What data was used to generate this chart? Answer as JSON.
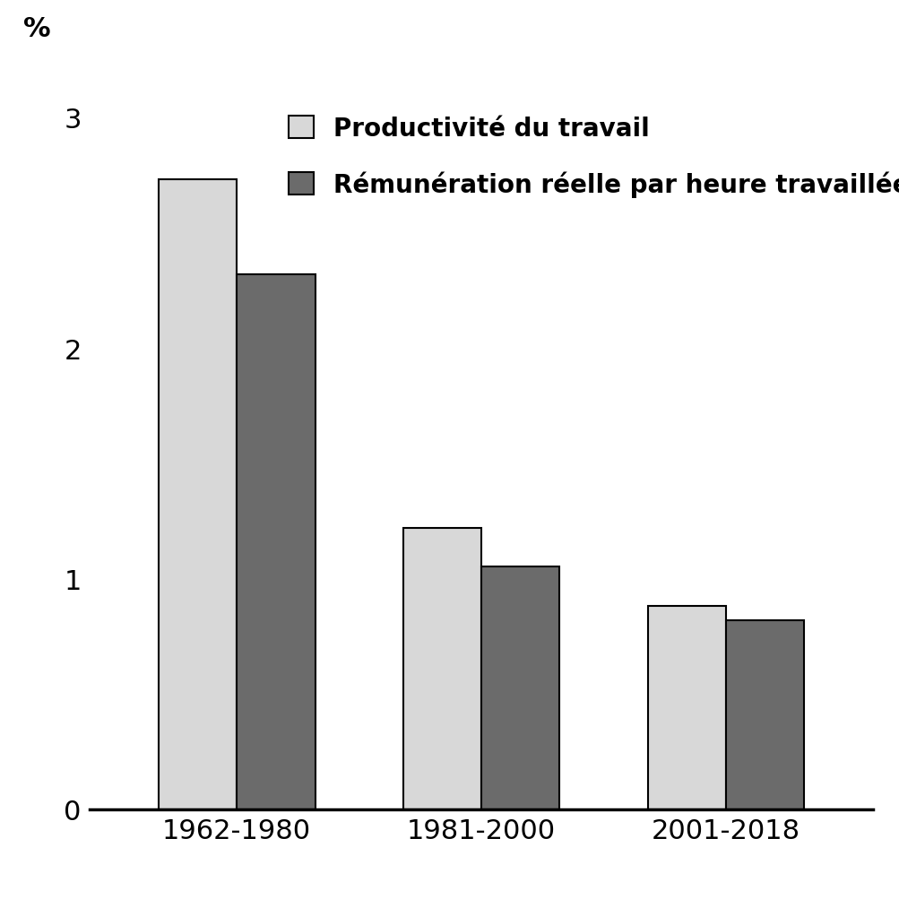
{
  "categories": [
    "1962-1980",
    "1981-2000",
    "2001-2018"
  ],
  "productivite": [
    2.73,
    1.22,
    0.88
  ],
  "remuneration": [
    2.32,
    1.05,
    0.82
  ],
  "color_productivite": "#d8d8d8",
  "color_remuneration": "#6b6b6b",
  "bar_edgecolor": "#000000",
  "bar_width": 0.32,
  "ylim": [
    0,
    3.2
  ],
  "yticks": [
    0,
    1,
    2,
    3
  ],
  "ylabel": "%",
  "legend_label1": "Productivité du travail",
  "legend_label2": "Rémunération réelle par heure travaillée",
  "background_color": "#ffffff",
  "label_fontsize": 22,
  "tick_fontsize": 22,
  "legend_fontsize": 20
}
